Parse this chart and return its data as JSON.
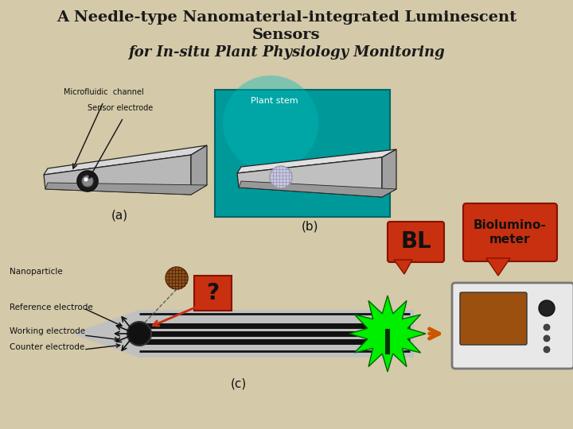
{
  "title_line1": "A Needle-type Nanomaterial-integrated Luminescent",
  "title_line2": "Sensors",
  "title_line3": "for In-situ Plant Physiology Monitoring",
  "bg_color": "#d4c9a8",
  "title_color": "#1a1a1a",
  "teal_color": "#009999",
  "red_color": "#c83010",
  "green_color": "#00cc00",
  "orange_color": "#cc5500",
  "label_a": "(a)",
  "label_b": "(b)",
  "label_c": "(c)",
  "label_bl": "BL",
  "label_biolumino": "Biolumino-\nmeter",
  "label_nanoparticle": "Nanoparticle",
  "label_ref": "Reference electrode",
  "label_working": "Working electrode",
  "label_counter": "Counter electrode",
  "label_microfluidic": "Microfluidic  channel",
  "label_sensor": "Sensor electrode",
  "label_plant_stem": "Plant stem"
}
